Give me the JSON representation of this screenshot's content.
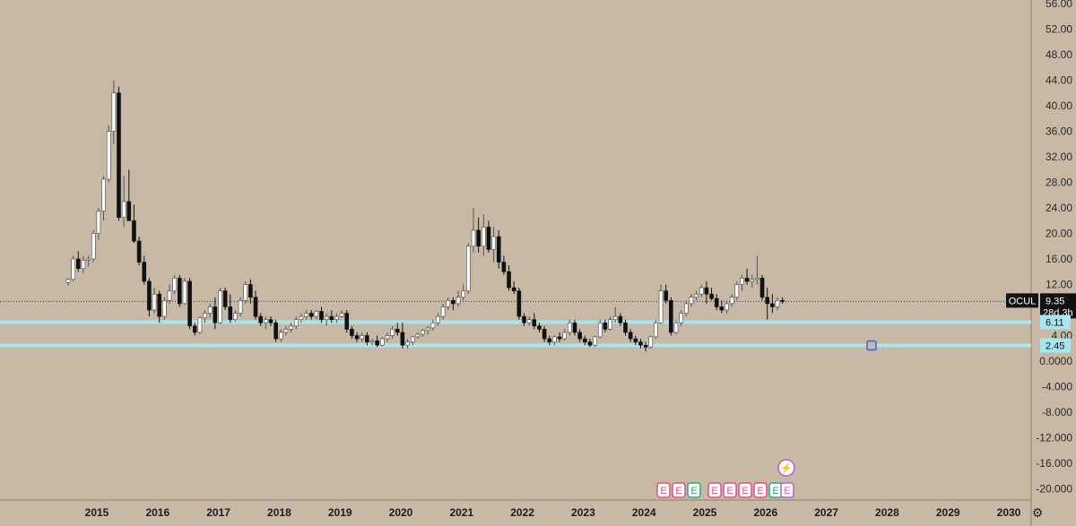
{
  "chart_data": {
    "type": "candlestick",
    "symbol": "OCUL",
    "last_price": "9.35",
    "countdown": "28d 3h",
    "price_axis": {
      "ticks": [
        "56.00",
        "52.00",
        "48.00",
        "44.00",
        "40.00",
        "36.00",
        "32.00",
        "28.00",
        "24.00",
        "20.00",
        "16.00",
        "12.00",
        "8.00",
        "4.00",
        "0.0000",
        "-4.000",
        "-8.000",
        "-12.000",
        "-16.000",
        "-20.000"
      ],
      "values": [
        56,
        52,
        48,
        44,
        40,
        36,
        32,
        28,
        24,
        20,
        16,
        12,
        8,
        4,
        0,
        -4,
        -8,
        -12,
        -16,
        -20
      ],
      "range": [
        -22,
        56
      ]
    },
    "time_axis": {
      "labels": [
        "2015",
        "2016",
        "2017",
        "2018",
        "2019",
        "2020",
        "2021",
        "2022",
        "2023",
        "2024",
        "2025",
        "2026",
        "2027",
        "2028",
        "2029",
        "2030"
      ]
    },
    "horizontal_lines": [
      {
        "value": 6.11,
        "label": "6.11",
        "color": "#a8e6ef"
      },
      {
        "value": 2.45,
        "label": "2.45",
        "color": "#a8e6ef"
      }
    ],
    "current_price_line": 9.35,
    "candles": [
      [
        12.3,
        13.0,
        11.8,
        12.8
      ],
      [
        12.8,
        16.5,
        12.5,
        16.0
      ],
      [
        16.0,
        17.2,
        14.0,
        14.5
      ],
      [
        14.5,
        16.5,
        13.8,
        15.8
      ],
      [
        15.8,
        16.5,
        14.8,
        16.0
      ],
      [
        16.0,
        20.5,
        15.5,
        20.0
      ],
      [
        20.0,
        24.0,
        19.0,
        23.5
      ],
      [
        23.5,
        29.0,
        22.0,
        28.5
      ],
      [
        28.5,
        37.0,
        28.0,
        36.0
      ],
      [
        36.0,
        44.0,
        34.0,
        42.0
      ],
      [
        42.0,
        43.0,
        22.0,
        22.5
      ],
      [
        22.5,
        29.0,
        21.0,
        25.0
      ],
      [
        25.0,
        30.0,
        22.0,
        22.0
      ],
      [
        22.0,
        24.5,
        18.5,
        18.8
      ],
      [
        18.8,
        19.5,
        15.0,
        15.5
      ],
      [
        15.5,
        16.5,
        12.0,
        12.5
      ],
      [
        12.5,
        13.0,
        7.0,
        8.0
      ],
      [
        8.0,
        11.5,
        7.5,
        10.5
      ],
      [
        10.5,
        11.0,
        6.0,
        7.0
      ],
      [
        7.0,
        10.0,
        6.5,
        9.5
      ],
      [
        9.5,
        12.0,
        9.0,
        11.0
      ],
      [
        11.0,
        13.5,
        10.5,
        13.0
      ],
      [
        13.0,
        13.5,
        8.5,
        9.0
      ],
      [
        9.0,
        13.0,
        8.8,
        12.5
      ],
      [
        12.5,
        13.0,
        5.0,
        5.5
      ],
      [
        5.5,
        6.0,
        4.0,
        4.5
      ],
      [
        4.5,
        7.0,
        4.2,
        6.8
      ],
      [
        6.8,
        8.0,
        6.0,
        7.5
      ],
      [
        7.5,
        9.0,
        6.8,
        8.5
      ],
      [
        8.5,
        10.0,
        5.0,
        6.0
      ],
      [
        6.0,
        11.5,
        5.8,
        11.0
      ],
      [
        11.0,
        11.5,
        8.0,
        8.5
      ],
      [
        8.5,
        10.5,
        6.0,
        6.5
      ],
      [
        6.5,
        8.0,
        6.2,
        7.5
      ],
      [
        7.5,
        10.0,
        7.0,
        9.5
      ],
      [
        9.5,
        12.5,
        9.0,
        12.0
      ],
      [
        12.0,
        12.8,
        9.0,
        10.0
      ],
      [
        10.0,
        11.0,
        6.5,
        7.0
      ],
      [
        7.0,
        7.5,
        5.5,
        6.0
      ],
      [
        6.0,
        7.0,
        5.0,
        6.5
      ],
      [
        6.5,
        7.0,
        5.5,
        6.0
      ],
      [
        6.0,
        6.5,
        3.0,
        3.5
      ],
      [
        3.5,
        5.0,
        3.0,
        4.5
      ],
      [
        4.5,
        5.5,
        4.0,
        5.0
      ],
      [
        5.0,
        6.0,
        4.5,
        5.5
      ],
      [
        5.5,
        7.0,
        5.0,
        6.5
      ],
      [
        6.5,
        7.5,
        6.0,
        7.0
      ],
      [
        7.0,
        8.0,
        6.5,
        7.5
      ],
      [
        7.5,
        8.0,
        6.5,
        7.0
      ],
      [
        7.0,
        8.0,
        6.5,
        7.8
      ],
      [
        7.8,
        8.5,
        6.0,
        6.5
      ],
      [
        6.5,
        7.5,
        5.5,
        7.0
      ],
      [
        7.0,
        8.0,
        6.0,
        6.5
      ],
      [
        6.5,
        7.5,
        6.0,
        7.0
      ],
      [
        7.0,
        8.0,
        6.8,
        7.5
      ],
      [
        7.5,
        8.0,
        4.5,
        5.0
      ],
      [
        5.0,
        5.5,
        3.5,
        4.0
      ],
      [
        4.0,
        4.5,
        3.0,
        3.5
      ],
      [
        3.5,
        4.5,
        3.0,
        4.0
      ],
      [
        4.0,
        4.5,
        2.5,
        3.0
      ],
      [
        3.0,
        3.5,
        2.5,
        3.2
      ],
      [
        3.2,
        4.0,
        2.2,
        2.5
      ],
      [
        2.5,
        3.8,
        2.3,
        3.5
      ],
      [
        3.5,
        4.5,
        3.0,
        4.0
      ],
      [
        4.0,
        5.5,
        3.5,
        5.0
      ],
      [
        5.0,
        6.0,
        4.0,
        4.5
      ],
      [
        4.5,
        6.0,
        2.0,
        2.5
      ],
      [
        2.5,
        3.5,
        2.0,
        3.0
      ],
      [
        3.0,
        4.0,
        2.5,
        3.8
      ],
      [
        3.8,
        4.5,
        3.5,
        4.2
      ],
      [
        4.2,
        5.0,
        3.8,
        4.8
      ],
      [
        4.8,
        5.5,
        4.2,
        5.2
      ],
      [
        5.2,
        6.5,
        4.8,
        6.0
      ],
      [
        6.0,
        7.5,
        5.5,
        7.0
      ],
      [
        7.0,
        9.0,
        6.5,
        8.5
      ],
      [
        8.5,
        10.0,
        8.0,
        9.5
      ],
      [
        9.5,
        10.0,
        8.0,
        9.0
      ],
      [
        9.0,
        11.0,
        8.5,
        10.0
      ],
      [
        10.0,
        12.0,
        9.5,
        11.0
      ],
      [
        11.0,
        18.5,
        10.5,
        18.0
      ],
      [
        18.0,
        24.0,
        17.0,
        20.5
      ],
      [
        20.5,
        22.5,
        17.0,
        18.0
      ],
      [
        18.0,
        23.0,
        16.5,
        21.0
      ],
      [
        21.0,
        22.0,
        17.0,
        17.5
      ],
      [
        17.5,
        21.0,
        15.5,
        19.5
      ],
      [
        19.5,
        20.5,
        14.5,
        15.5
      ],
      [
        15.5,
        16.5,
        13.5,
        14.0
      ],
      [
        14.0,
        15.0,
        11.0,
        11.5
      ],
      [
        11.5,
        12.5,
        10.5,
        11.0
      ],
      [
        11.0,
        11.5,
        6.5,
        7.0
      ],
      [
        7.0,
        7.5,
        5.5,
        6.0
      ],
      [
        6.0,
        7.0,
        5.5,
        6.5
      ],
      [
        6.5,
        7.5,
        5.0,
        5.5
      ],
      [
        5.5,
        6.0,
        4.5,
        5.0
      ],
      [
        5.0,
        5.5,
        3.0,
        3.5
      ],
      [
        3.5,
        4.0,
        2.5,
        3.0
      ],
      [
        3.0,
        4.0,
        2.5,
        3.8
      ],
      [
        3.8,
        4.5,
        3.0,
        3.5
      ],
      [
        3.5,
        5.0,
        3.2,
        4.5
      ],
      [
        4.5,
        6.5,
        4.0,
        6.0
      ],
      [
        6.0,
        6.5,
        4.0,
        4.5
      ],
      [
        4.5,
        5.0,
        3.0,
        3.5
      ],
      [
        3.5,
        4.0,
        2.5,
        3.0
      ],
      [
        3.0,
        3.5,
        2.2,
        2.5
      ],
      [
        2.5,
        4.0,
        2.2,
        3.8
      ],
      [
        3.8,
        6.5,
        3.5,
        6.0
      ],
      [
        6.0,
        6.5,
        4.5,
        5.0
      ],
      [
        5.0,
        7.0,
        4.8,
        6.5
      ],
      [
        6.5,
        8.5,
        6.0,
        7.0
      ],
      [
        7.0,
        7.5,
        5.5,
        6.0
      ],
      [
        6.0,
        6.5,
        4.0,
        4.5
      ],
      [
        4.5,
        5.0,
        3.0,
        3.5
      ],
      [
        3.5,
        4.0,
        2.5,
        3.0
      ],
      [
        3.0,
        3.5,
        2.0,
        2.5
      ],
      [
        2.5,
        3.0,
        1.5,
        2.2
      ],
      [
        2.2,
        4.0,
        2.0,
        3.8
      ],
      [
        3.8,
        6.5,
        3.5,
        6.0
      ],
      [
        6.0,
        12.0,
        5.8,
        11.0
      ],
      [
        11.0,
        12.0,
        9.0,
        9.5
      ],
      [
        9.5,
        10.0,
        4.0,
        4.5
      ],
      [
        4.5,
        6.5,
        4.2,
        6.0
      ],
      [
        6.0,
        8.0,
        5.5,
        7.5
      ],
      [
        7.5,
        9.5,
        7.0,
        9.0
      ],
      [
        9.0,
        10.5,
        8.5,
        10.0
      ],
      [
        10.0,
        11.0,
        9.5,
        10.5
      ],
      [
        10.5,
        12.0,
        10.0,
        11.5
      ],
      [
        11.5,
        12.5,
        9.0,
        10.5
      ],
      [
        10.5,
        11.5,
        9.5,
        9.8
      ],
      [
        9.8,
        10.5,
        8.0,
        8.5
      ],
      [
        8.5,
        9.5,
        7.5,
        8.0
      ],
      [
        8.0,
        9.5,
        7.5,
        9.0
      ],
      [
        9.0,
        10.5,
        8.5,
        10.0
      ],
      [
        10.0,
        12.5,
        9.5,
        12.0
      ],
      [
        12.0,
        13.5,
        11.0,
        13.0
      ],
      [
        13.0,
        14.5,
        12.0,
        12.5
      ],
      [
        12.5,
        13.5,
        11.5,
        12.8
      ],
      [
        12.8,
        16.5,
        12.0,
        13.0
      ],
      [
        13.0,
        13.5,
        9.5,
        10.0
      ],
      [
        10.0,
        11.5,
        6.5,
        9.0
      ],
      [
        9.0,
        10.5,
        7.5,
        8.5
      ],
      [
        8.5,
        10.0,
        8.0,
        9.5
      ],
      [
        9.5,
        10.0,
        9.0,
        9.35
      ]
    ],
    "event_markers": {
      "row": [
        "E",
        "E",
        "E",
        "E",
        "E",
        "E",
        "E",
        "E",
        "E"
      ],
      "top": [
        "⚡",
        "E"
      ]
    }
  },
  "ui": {
    "settings_icon": "⚙"
  }
}
